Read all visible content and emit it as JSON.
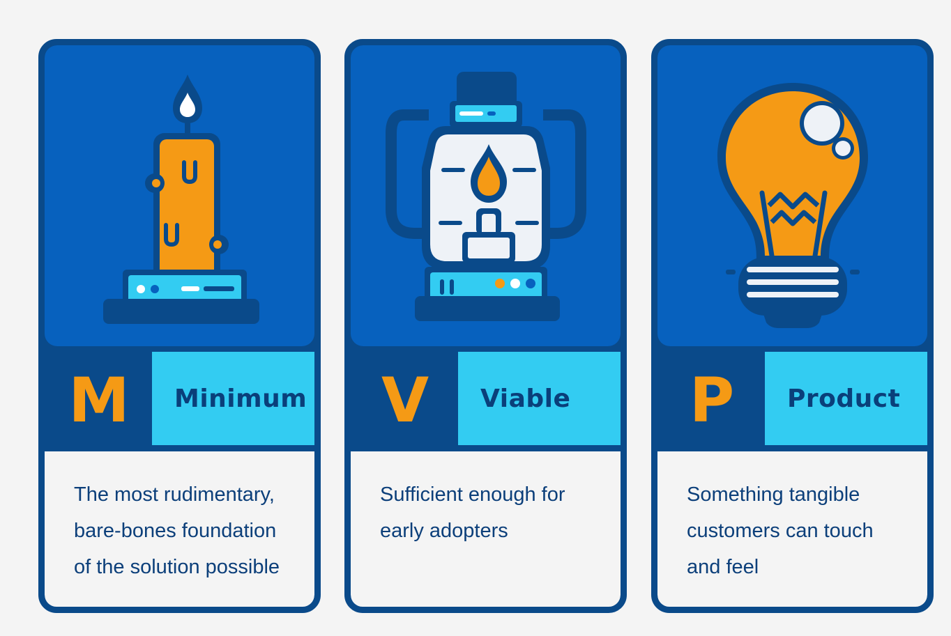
{
  "colors": {
    "background": "#f4f4f4",
    "navy": "#0a4a8a",
    "blue": "#0761be",
    "cyan": "#33ccf2",
    "orange": "#f59a15",
    "white": "#eef2f7"
  },
  "cards": [
    {
      "icon": "candle-icon",
      "letter": "M",
      "word": "Minimum",
      "description_lines": [
        "The most rudimentary,",
        "bare-bones foundation",
        "of the solution possible"
      ]
    },
    {
      "icon": "lantern-icon",
      "letter": "V",
      "word": "Viable",
      "description_lines": [
        "Sufficient enough for",
        "early adopters"
      ]
    },
    {
      "icon": "lightbulb-icon",
      "letter": "P",
      "word": "Product",
      "description_lines": [
        "Something tangible",
        "customers can touch",
        "and feel"
      ]
    }
  ]
}
